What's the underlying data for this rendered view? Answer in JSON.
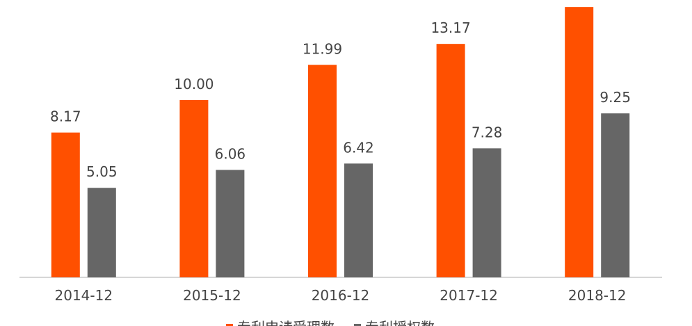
{
  "chart_data": {
    "type": "bar",
    "categories": [
      "2014-12",
      "2015-12",
      "2016-12",
      "2017-12",
      "2018-12"
    ],
    "series": [
      {
        "name": "专利申请受理数",
        "color": "#FF5000",
        "values": [
          8.17,
          10.0,
          11.99,
          13.17,
          15.25
        ],
        "labels": [
          "8.17",
          "10.00",
          "11.99",
          "13.17",
          ""
        ]
      },
      {
        "name": "专利授权数",
        "color": "#666666",
        "values": [
          5.05,
          6.06,
          6.42,
          7.28,
          9.25
        ],
        "labels": [
          "5.05",
          "6.06",
          "6.42",
          "7.28",
          "9.25"
        ]
      }
    ],
    "title": "",
    "xlabel": "",
    "ylabel": "",
    "ylim": [
      0,
      15
    ],
    "grid": false,
    "legend": "bottom-center"
  }
}
